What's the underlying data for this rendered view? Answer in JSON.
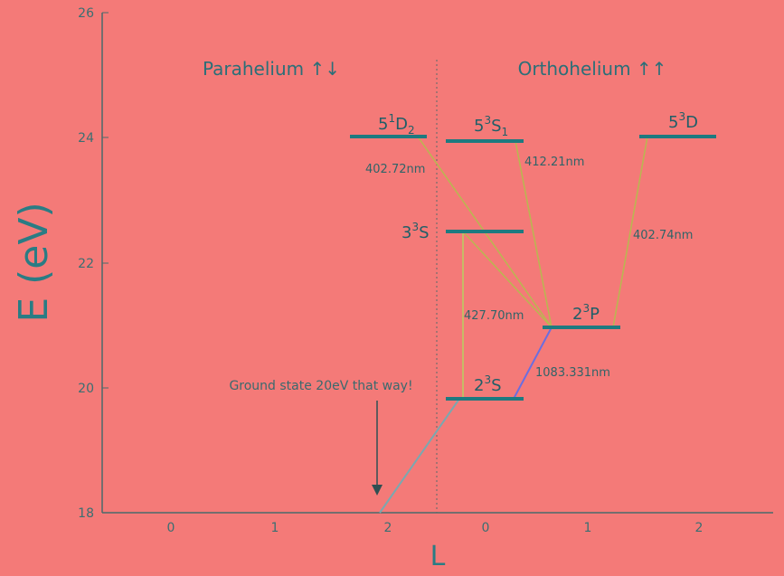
{
  "chart_data": {
    "type": "diagram",
    "xlabel": "L",
    "ylabel": "E (eV)",
    "ylim": [
      18,
      26
    ],
    "y_ticks": [
      "18",
      "20",
      "22",
      "24",
      "26"
    ],
    "x_ticks": [
      "0",
      "1",
      "2",
      "0",
      "1",
      "2"
    ],
    "groups": [
      {
        "name": "Parahelium ↑↓"
      },
      {
        "name": "Orthohelium ↑↑"
      }
    ],
    "levels": [
      {
        "base": "5",
        "sup": "1",
        "term": "D",
        "sub": "2",
        "energy": 24.03
      },
      {
        "base": "5",
        "sup": "3",
        "term": "S",
        "sub": "1",
        "energy": 23.97
      },
      {
        "base": "5",
        "sup": "3",
        "term": "D",
        "sub": "",
        "energy": 24.04
      },
      {
        "base": "3",
        "sup": "3",
        "term": "S",
        "sub": "",
        "energy": 22.49
      },
      {
        "base": "2",
        "sup": "3",
        "term": "P",
        "sub": "",
        "energy": 20.96
      },
      {
        "base": "2",
        "sup": "3",
        "term": "S",
        "sub": "",
        "energy": 19.82
      }
    ],
    "transitions": [
      {
        "label": "402.72nm",
        "color": "#b8b850"
      },
      {
        "label": "412.21nm",
        "color": "#b8b850"
      },
      {
        "label": "402.74nm",
        "color": "#b8b850"
      },
      {
        "label": "427.70nm",
        "color": "#b8d060"
      },
      {
        "label": "1083.331nm",
        "color": "#6a6ee0"
      }
    ],
    "annotation": "Ground state 20eV that way!",
    "colors": {
      "background": "#f47a78",
      "level": "#1e7a80",
      "axis": "#4a6a6a"
    }
  }
}
